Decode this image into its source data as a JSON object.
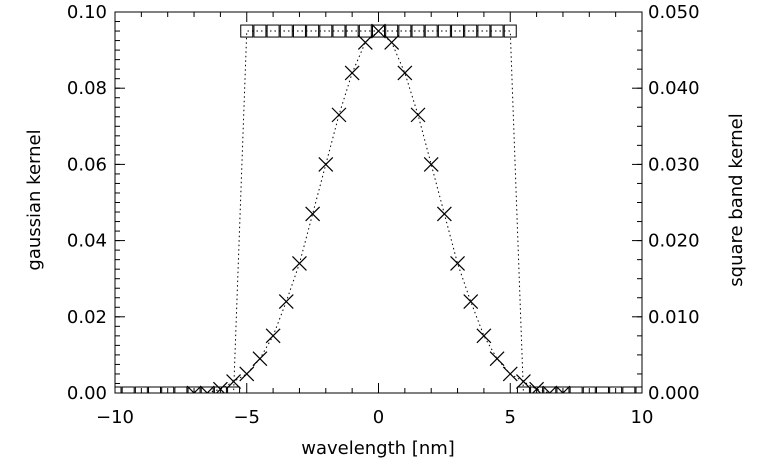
{
  "chart_data": {
    "type": "scatter",
    "xlabel": "wavelength [nm]",
    "ylabel": "gaussian kernel",
    "y2label": "square band kernel",
    "xlim": [
      -10,
      10
    ],
    "ylim": [
      0,
      0.1
    ],
    "y2lim": [
      0,
      0.05
    ],
    "xticks": [
      -10,
      -5,
      0,
      5,
      10
    ],
    "xtick_labels": [
      "−10",
      "−5",
      "0",
      "5",
      "10"
    ],
    "yticks": [
      0,
      0.02,
      0.04,
      0.06,
      0.08,
      0.1
    ],
    "ytick_labels": [
      "0.00",
      "0.02",
      "0.04",
      "0.06",
      "0.08",
      "0.10"
    ],
    "y2ticks": [
      0,
      0.01,
      0.02,
      0.03,
      0.04,
      0.05
    ],
    "y2tick_labels": [
      "0.000",
      "0.010",
      "0.020",
      "0.030",
      "0.040",
      "0.050"
    ],
    "grid": false,
    "series": [
      {
        "marker": "x",
        "axis": "left",
        "line": "dotted",
        "x": [
          -7.0,
          -6.5,
          -6.0,
          -5.5,
          -5.0,
          -4.5,
          -4.0,
          -3.5,
          -3.0,
          -2.5,
          -2.0,
          -1.5,
          -1.0,
          -0.5,
          0.0,
          0.5,
          1.0,
          1.5,
          2.0,
          2.5,
          3.0,
          3.5,
          4.0,
          4.5,
          5.0,
          5.5,
          6.0,
          6.5,
          7.0
        ],
        "y": [
          0.0,
          0.0,
          0.001,
          0.003,
          0.005,
          0.009,
          0.015,
          0.024,
          0.034,
          0.047,
          0.06,
          0.073,
          0.084,
          0.092,
          0.095,
          0.092,
          0.084,
          0.073,
          0.06,
          0.047,
          0.034,
          0.024,
          0.015,
          0.009,
          0.005,
          0.003,
          0.001,
          0.0,
          0.0
        ]
      },
      {
        "marker": "square",
        "axis": "right",
        "line": "dotted",
        "x": [
          -10.0,
          -9.5,
          -9.0,
          -8.5,
          -8.0,
          -7.5,
          -7.0,
          -6.5,
          -6.0,
          -5.5,
          -5.0,
          -4.5,
          -4.0,
          -3.5,
          -3.0,
          -2.5,
          -2.0,
          -1.5,
          -1.0,
          -0.5,
          0.0,
          0.5,
          1.0,
          1.5,
          2.0,
          2.5,
          3.0,
          3.5,
          4.0,
          4.5,
          5.0,
          5.5,
          6.0,
          6.5,
          7.0,
          7.5,
          8.0,
          8.5,
          9.0,
          9.5,
          10.0
        ],
        "y": [
          0,
          0,
          0,
          0,
          0,
          0,
          0,
          0,
          0,
          0,
          0.0475,
          0.0475,
          0.0475,
          0.0475,
          0.0475,
          0.0475,
          0.0475,
          0.0475,
          0.0475,
          0.0475,
          0.0475,
          0.0475,
          0.0475,
          0.0475,
          0.0475,
          0.0475,
          0.0475,
          0.0475,
          0.0475,
          0.0475,
          0.0475,
          0,
          0,
          0,
          0,
          0,
          0,
          0,
          0,
          0,
          0
        ]
      }
    ]
  }
}
